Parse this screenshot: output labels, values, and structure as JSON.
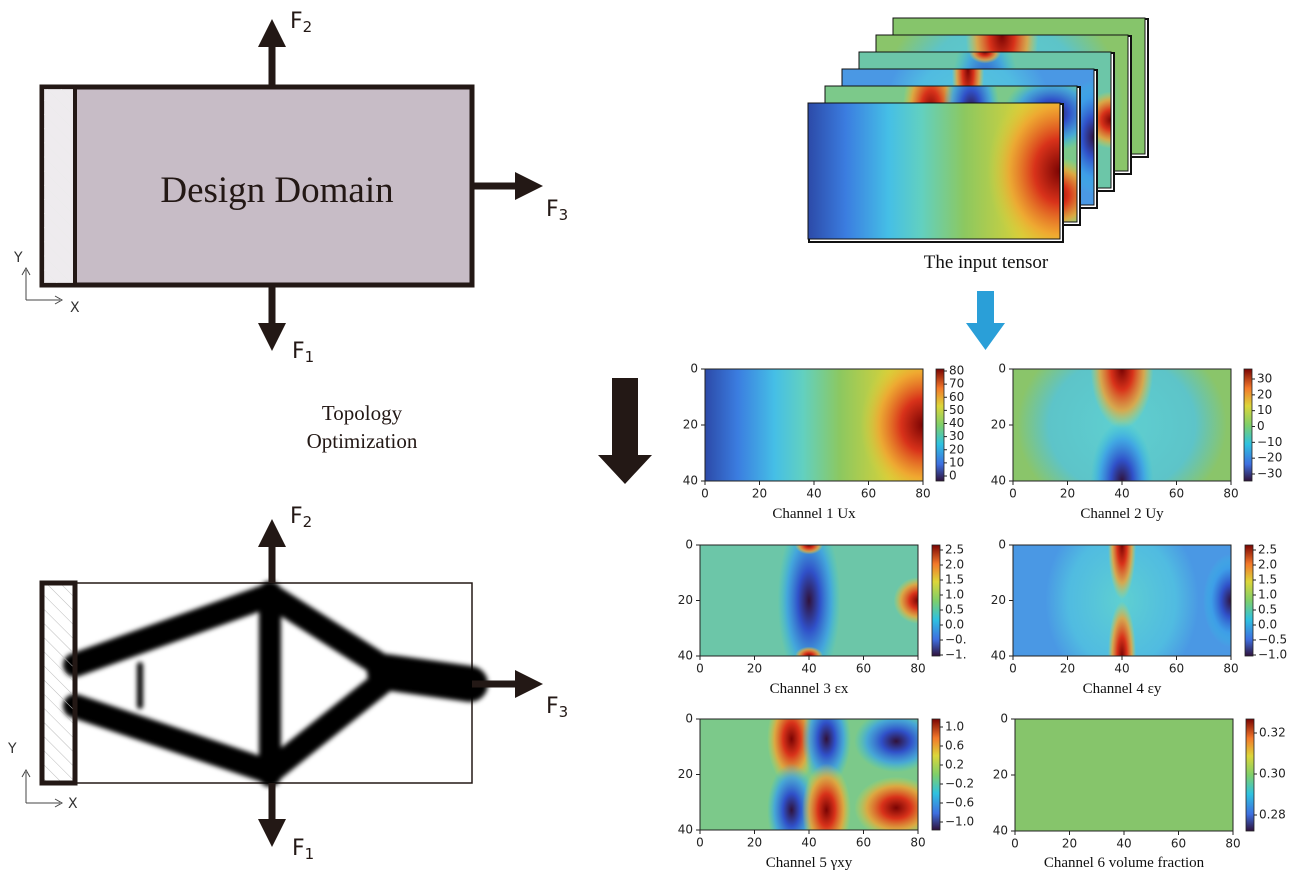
{
  "design_domain": {
    "label": "Design Domain"
  },
  "forces": {
    "top": {
      "base": "F",
      "sub": "2"
    },
    "right": {
      "base": "F",
      "sub": "3"
    },
    "bottom": {
      "base": "F",
      "sub": "1"
    }
  },
  "axes": {
    "y": "Y",
    "x": "X"
  },
  "step": {
    "lines": [
      "Topology",
      "Optimization"
    ]
  },
  "input_tensor": {
    "caption": "The input tensor"
  },
  "channels": [
    {
      "caption": "Channel 1 Ux",
      "xticks": [
        "0",
        "20",
        "40",
        "60",
        "80"
      ],
      "yticks": [
        "0",
        "20",
        "40"
      ],
      "colorbar_ticks": [
        "80",
        "70",
        "60",
        "50",
        "40",
        "30",
        "20",
        "10",
        "0"
      ]
    },
    {
      "caption": "Channel 2 Uy",
      "xticks": [
        "0",
        "20",
        "40",
        "60",
        "80"
      ],
      "yticks": [
        "0",
        "20",
        "40"
      ],
      "colorbar_ticks": [
        "30",
        "20",
        "10",
        "0",
        "−10",
        "−20",
        "−30"
      ]
    },
    {
      "caption": "Channel 3 εx",
      "xticks": [
        "0",
        "20",
        "40",
        "60",
        "80"
      ],
      "yticks": [
        "0",
        "20",
        "40"
      ],
      "colorbar_ticks": [
        "2.5",
        "2.0",
        "1.5",
        "1.0",
        "0.5",
        "0.0",
        "−0.",
        "−1."
      ]
    },
    {
      "caption": "Channel 4 εy",
      "xticks": [
        "0",
        "20",
        "40",
        "60",
        "80"
      ],
      "yticks": [
        "0",
        "20",
        "40"
      ],
      "colorbar_ticks": [
        "2.5",
        "2.0",
        "1.5",
        "1.0",
        "0.5",
        "0.0",
        "−0.5",
        "−1.0"
      ]
    },
    {
      "caption": "Channel 5 γxy",
      "xticks": [
        "0",
        "20",
        "40",
        "60",
        "80"
      ],
      "yticks": [
        "0",
        "20",
        "40"
      ],
      "colorbar_ticks": [
        "1.0",
        "0.6",
        "0.2",
        "−0.2",
        "−0.6",
        "−1.0"
      ]
    },
    {
      "caption": "Channel 6 volume fraction",
      "xticks": [
        "0",
        "20",
        "40",
        "60",
        "80"
      ],
      "yticks": [
        "0",
        "20",
        "40"
      ],
      "colorbar_ticks": [
        "0.32",
        "0.30",
        "0.28"
      ]
    }
  ]
}
